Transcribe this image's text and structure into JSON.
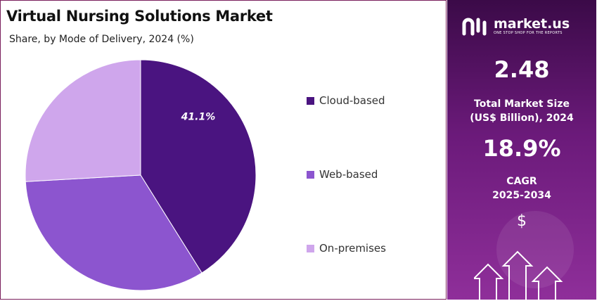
{
  "chart_data": {
    "type": "pie",
    "title": "Virtual Nursing Solutions Market",
    "subtitle": "Share, by Mode of Delivery, 2024 (%)",
    "slices": [
      {
        "label": "Cloud-based",
        "value": 41.1,
        "color": "#4a1480",
        "data_label": "41.1%"
      },
      {
        "label": "Web-based",
        "value": 33.0,
        "color": "#8c55cf",
        "data_label": ""
      },
      {
        "label": "On-premises",
        "value": 25.9,
        "color": "#cfa6ec",
        "data_label": ""
      }
    ],
    "legend_position": "right"
  },
  "sidebar": {
    "brand_name": "market.us",
    "brand_tagline": "ONE STOP SHOP FOR THE REPORTS",
    "market_size_value": "2.48",
    "market_size_label": "Total Market Size (US$ Billion), 2024",
    "cagr_value": "18.9%",
    "cagr_label_line1": "CAGR",
    "cagr_label_line2": "2025-2034",
    "currency_symbol": "$",
    "colors": {
      "panel_top": "#3b0a48",
      "panel_bottom": "#8f2f9a"
    }
  }
}
